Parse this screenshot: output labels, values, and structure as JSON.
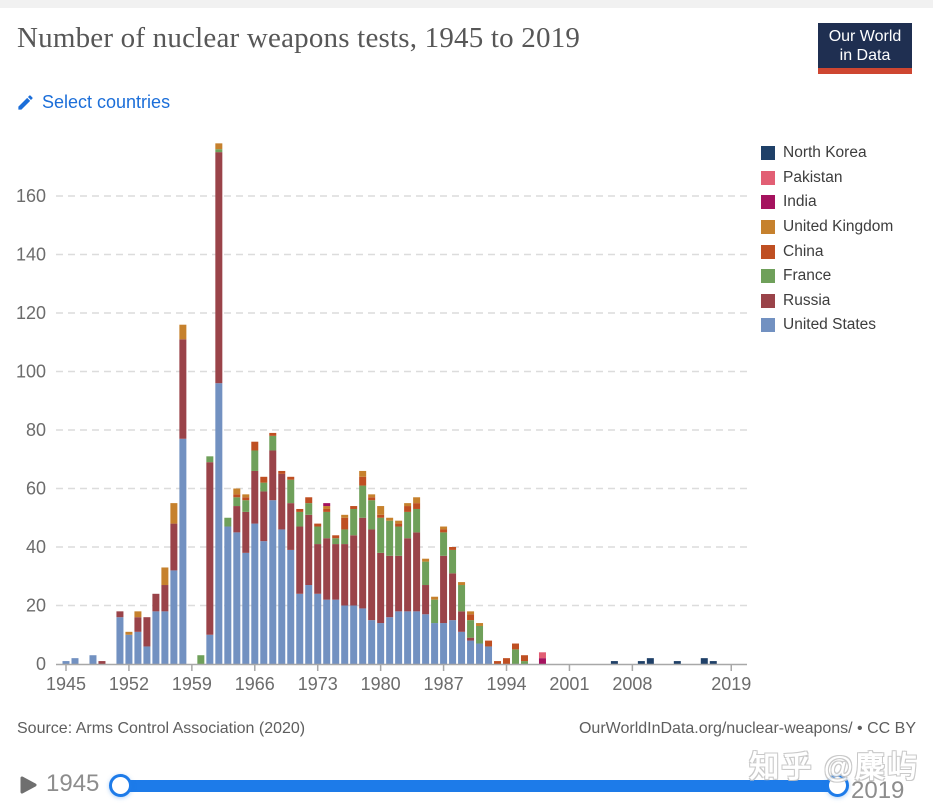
{
  "header": {
    "title": "Number of nuclear weapons tests, 1945 to 2019",
    "logo": {
      "line1": "Our World",
      "line2": "in Data",
      "bg_color": "#1f2f51",
      "accent_color": "#ce4631"
    }
  },
  "controls": {
    "select_countries_label": "Select countries",
    "link_color": "#1b6ed9"
  },
  "chart_data": {
    "type": "bar",
    "stacked": true,
    "title": "Number of nuclear weapons tests, 1945 to 2019",
    "xlabel": "",
    "ylabel": "",
    "xlim": [
      1945,
      2019
    ],
    "ylim": [
      0,
      180
    ],
    "y_ticks": [
      0,
      20,
      40,
      60,
      80,
      100,
      120,
      140,
      160
    ],
    "x_tick_labels": [
      "1945",
      "1952",
      "1959",
      "1966",
      "1973",
      "1980",
      "1987",
      "1994",
      "2001",
      "2008",
      "2019"
    ],
    "grid": "dashed horizontal",
    "legend_position": "right",
    "legend_order_top_to_bottom": [
      "North Korea",
      "Pakistan",
      "India",
      "United Kingdom",
      "China",
      "France",
      "Russia",
      "United States"
    ],
    "series": [
      {
        "name": "United States",
        "color": "#7291c1",
        "values": {
          "1945": 1,
          "1946": 2,
          "1948": 3,
          "1951": 16,
          "1952": 10,
          "1953": 11,
          "1954": 6,
          "1955": 18,
          "1956": 18,
          "1957": 32,
          "1958": 77,
          "1961": 10,
          "1962": 96,
          "1963": 47,
          "1964": 45,
          "1965": 38,
          "1966": 48,
          "1967": 42,
          "1968": 56,
          "1969": 46,
          "1970": 39,
          "1971": 24,
          "1972": 27,
          "1973": 24,
          "1974": 22,
          "1975": 22,
          "1976": 20,
          "1977": 20,
          "1978": 19,
          "1979": 15,
          "1980": 14,
          "1981": 16,
          "1982": 18,
          "1983": 18,
          "1984": 18,
          "1985": 17,
          "1986": 14,
          "1987": 14,
          "1988": 15,
          "1989": 11,
          "1990": 8,
          "1991": 7,
          "1992": 6
        }
      },
      {
        "name": "Russia",
        "color": "#9a4349",
        "values": {
          "1949": 1,
          "1951": 2,
          "1953": 5,
          "1954": 10,
          "1955": 6,
          "1956": 9,
          "1957": 16,
          "1958": 34,
          "1961": 59,
          "1962": 79,
          "1964": 9,
          "1965": 14,
          "1966": 18,
          "1967": 17,
          "1968": 17,
          "1969": 19,
          "1970": 16,
          "1971": 23,
          "1972": 24,
          "1973": 17,
          "1974": 21,
          "1975": 19,
          "1976": 21,
          "1977": 24,
          "1978": 31,
          "1979": 31,
          "1980": 24,
          "1981": 21,
          "1982": 19,
          "1983": 25,
          "1984": 27,
          "1985": 10,
          "1987": 23,
          "1988": 16,
          "1989": 7,
          "1990": 1
        }
      },
      {
        "name": "France",
        "color": "#6fa05a",
        "values": {
          "1960": 3,
          "1961": 2,
          "1962": 1,
          "1963": 3,
          "1964": 3,
          "1965": 4,
          "1966": 7,
          "1967": 3,
          "1968": 5,
          "1970": 8,
          "1971": 5,
          "1972": 4,
          "1973": 6,
          "1974": 9,
          "1975": 2,
          "1976": 5,
          "1977": 9,
          "1978": 11,
          "1979": 10,
          "1980": 12,
          "1981": 12,
          "1982": 10,
          "1983": 9,
          "1984": 8,
          "1985": 8,
          "1986": 8,
          "1987": 8,
          "1988": 8,
          "1989": 9,
          "1990": 6,
          "1991": 6,
          "1995": 5,
          "1996": 1
        }
      },
      {
        "name": "China",
        "color": "#bf4f22",
        "values": {
          "1964": 1,
          "1965": 1,
          "1966": 3,
          "1967": 2,
          "1968": 1,
          "1969": 1,
          "1970": 1,
          "1971": 1,
          "1972": 2,
          "1973": 1,
          "1974": 1,
          "1975": 1,
          "1976": 4,
          "1977": 1,
          "1978": 3,
          "1979": 1,
          "1980": 1,
          "1982": 1,
          "1983": 2,
          "1984": 2,
          "1987": 1,
          "1988": 1,
          "1990": 2,
          "1992": 2,
          "1993": 1,
          "1994": 2,
          "1995": 2,
          "1996": 2
        }
      },
      {
        "name": "United Kingdom",
        "color": "#c6812d",
        "values": {
          "1952": 1,
          "1953": 2,
          "1956": 6,
          "1957": 7,
          "1958": 5,
          "1962": 2,
          "1964": 2,
          "1965": 1,
          "1974": 1,
          "1976": 1,
          "1978": 2,
          "1979": 1,
          "1980": 3,
          "1981": 1,
          "1982": 1,
          "1983": 1,
          "1984": 2,
          "1985": 1,
          "1986": 1,
          "1987": 1,
          "1989": 1,
          "1990": 1,
          "1991": 1
        }
      },
      {
        "name": "India",
        "color": "#a5125e",
        "values": {
          "1974": 1,
          "1998": 2
        }
      },
      {
        "name": "Pakistan",
        "color": "#e25f74",
        "values": {
          "1998": 2
        }
      },
      {
        "name": "North Korea",
        "color": "#1f4068",
        "values": {
          "2006": 1,
          "2009": 1,
          "2010": 2,
          "2013": 1,
          "2016": 2,
          "2017": 1
        }
      }
    ]
  },
  "footer": {
    "source": "Source: Arms Control Association (2020)",
    "attribution": "OurWorldInData.org/nuclear-weapons/ • CC BY"
  },
  "timeline": {
    "start_label": "1945",
    "end_label": "2019",
    "track_color": "#1d7be9"
  },
  "page": {
    "watermark": "知乎 @麋屿"
  }
}
